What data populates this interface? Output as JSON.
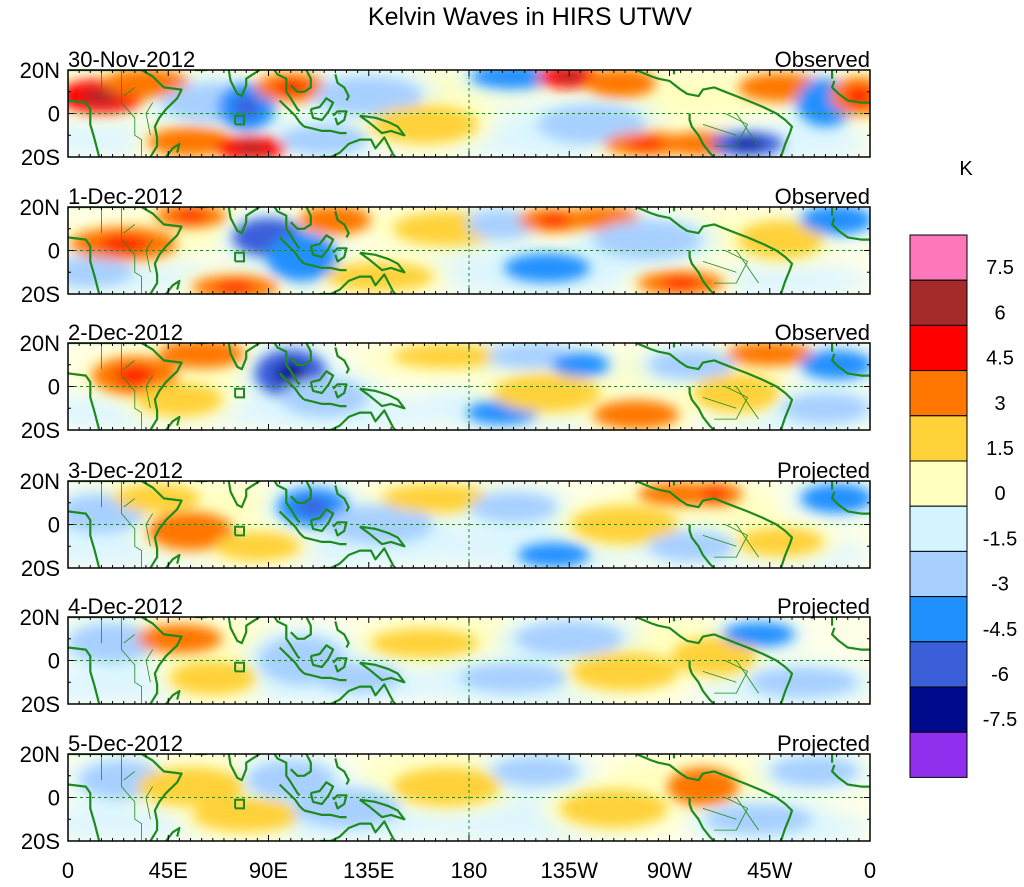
{
  "chart_data": {
    "type": "heatmap",
    "title": "Kelvin Waves in HIRS UTWV",
    "variable": "UTWV anomaly (Kelvin wave filtered)",
    "x_ticks": [
      "0",
      "45E",
      "90E",
      "135E",
      "180",
      "135W",
      "90W",
      "45W",
      "0"
    ],
    "x_range_deg": [
      0,
      360
    ],
    "y_ticks": [
      "20N",
      "0",
      "20S"
    ],
    "y_range_deg": [
      -20,
      20
    ],
    "colorbar": {
      "unit_label": "K",
      "levels": [
        "7.5",
        "6",
        "4.5",
        "3",
        "1.5",
        "0",
        "-1.5",
        "-3",
        "-4.5",
        "-6",
        "-7.5"
      ],
      "colors": [
        "#ff77bb",
        "#a52a2a",
        "#ff0000",
        "#ff7700",
        "#ffd23a",
        "#ffffc0",
        "#d4f4ff",
        "#a8d0ff",
        "#2090ff",
        "#3b5fd9",
        "#000a8c",
        "#9030ee"
      ]
    },
    "panels": [
      {
        "date": "30-Nov-2012",
        "kind": "Observed",
        "anomalies": [
          {
            "lon": 15,
            "lat": 8,
            "value": 5,
            "sx": 12,
            "sy": 7
          },
          {
            "lon": 35,
            "lat": 14,
            "value": 3,
            "sx": 12,
            "sy": 6
          },
          {
            "lon": 65,
            "lat": 5,
            "value": -2,
            "sx": 14,
            "sy": 8
          },
          {
            "lon": 80,
            "lat": 3,
            "value": -4,
            "sx": 8,
            "sy": 10
          },
          {
            "lon": 100,
            "lat": 12,
            "value": 4,
            "sx": 10,
            "sy": 6
          },
          {
            "lon": 55,
            "lat": -13,
            "value": 3,
            "sx": 12,
            "sy": 6
          },
          {
            "lon": 82,
            "lat": -16,
            "value": 5,
            "sx": 10,
            "sy": 5
          },
          {
            "lon": 115,
            "lat": -12,
            "value": -2.5,
            "sx": 12,
            "sy": 6
          },
          {
            "lon": 135,
            "lat": 8,
            "value": -2,
            "sx": 15,
            "sy": 8
          },
          {
            "lon": 160,
            "lat": -5,
            "value": 2,
            "sx": 15,
            "sy": 8
          },
          {
            "lon": 200,
            "lat": 17,
            "value": -3,
            "sx": 12,
            "sy": 5
          },
          {
            "lon": 225,
            "lat": 17,
            "value": 5,
            "sx": 9,
            "sy": 5
          },
          {
            "lon": 248,
            "lat": 14,
            "value": 3,
            "sx": 10,
            "sy": 6
          },
          {
            "lon": 235,
            "lat": -5,
            "value": -2,
            "sx": 15,
            "sy": 8
          },
          {
            "lon": 260,
            "lat": -14,
            "value": 4,
            "sx": 12,
            "sy": 5
          },
          {
            "lon": 285,
            "lat": -14,
            "value": 3,
            "sx": 12,
            "sy": 5
          },
          {
            "lon": 305,
            "lat": -14,
            "value": -5,
            "sx": 10,
            "sy": 5
          },
          {
            "lon": 320,
            "lat": 12,
            "value": 3,
            "sx": 12,
            "sy": 6
          },
          {
            "lon": 340,
            "lat": 5,
            "value": -3,
            "sx": 8,
            "sy": 10
          },
          {
            "lon": 355,
            "lat": 8,
            "value": 4,
            "sx": 8,
            "sy": 8
          }
        ]
      },
      {
        "date": "1-Dec-2012",
        "kind": "Observed",
        "anomalies": [
          {
            "lon": 25,
            "lat": 3,
            "value": 4,
            "sx": 15,
            "sy": 7
          },
          {
            "lon": 10,
            "lat": -10,
            "value": -2,
            "sx": 12,
            "sy": 6
          },
          {
            "lon": 55,
            "lat": 16,
            "value": 4,
            "sx": 10,
            "sy": 5
          },
          {
            "lon": 90,
            "lat": 6,
            "value": -4.5,
            "sx": 10,
            "sy": 8
          },
          {
            "lon": 105,
            "lat": -3,
            "value": -3,
            "sx": 10,
            "sy": 10
          },
          {
            "lon": 75,
            "lat": -17,
            "value": 4,
            "sx": 12,
            "sy": 5
          },
          {
            "lon": 120,
            "lat": 14,
            "value": 3,
            "sx": 10,
            "sy": 6
          },
          {
            "lon": 140,
            "lat": -12,
            "value": 2,
            "sx": 15,
            "sy": 6
          },
          {
            "lon": 170,
            "lat": 10,
            "value": 2,
            "sx": 15,
            "sy": 7
          },
          {
            "lon": 195,
            "lat": 12,
            "value": -2,
            "sx": 10,
            "sy": 6
          },
          {
            "lon": 218,
            "lat": 14,
            "value": 4,
            "sx": 10,
            "sy": 5
          },
          {
            "lon": 240,
            "lat": 15,
            "value": 3,
            "sx": 10,
            "sy": 5
          },
          {
            "lon": 215,
            "lat": -8,
            "value": -3,
            "sx": 12,
            "sy": 6
          },
          {
            "lon": 275,
            "lat": -15,
            "value": 4,
            "sx": 12,
            "sy": 5
          },
          {
            "lon": 260,
            "lat": 5,
            "value": -2,
            "sx": 15,
            "sy": 8
          },
          {
            "lon": 320,
            "lat": 5,
            "value": 2.5,
            "sx": 12,
            "sy": 8
          },
          {
            "lon": 345,
            "lat": 14,
            "value": -3,
            "sx": 10,
            "sy": 6
          }
        ]
      },
      {
        "date": "2-Dec-2012",
        "kind": "Observed",
        "anomalies": [
          {
            "lon": 30,
            "lat": 5,
            "value": 4,
            "sx": 12,
            "sy": 8
          },
          {
            "lon": 60,
            "lat": 15,
            "value": 3,
            "sx": 12,
            "sy": 6
          },
          {
            "lon": 50,
            "lat": -6,
            "value": 2,
            "sx": 12,
            "sy": 7
          },
          {
            "lon": 100,
            "lat": 6,
            "value": -5,
            "sx": 10,
            "sy": 10
          },
          {
            "lon": 115,
            "lat": -5,
            "value": -2.5,
            "sx": 12,
            "sy": 8
          },
          {
            "lon": 170,
            "lat": 14,
            "value": 2,
            "sx": 15,
            "sy": 5
          },
          {
            "lon": 208,
            "lat": 14,
            "value": -2.5,
            "sx": 12,
            "sy": 5
          },
          {
            "lon": 230,
            "lat": 10,
            "value": -3,
            "sx": 8,
            "sy": 5
          },
          {
            "lon": 195,
            "lat": -12,
            "value": -3.5,
            "sx": 10,
            "sy": 5
          },
          {
            "lon": 215,
            "lat": -3,
            "value": 2,
            "sx": 15,
            "sy": 8
          },
          {
            "lon": 255,
            "lat": -13,
            "value": 3,
            "sx": 12,
            "sy": 6
          },
          {
            "lon": 280,
            "lat": 10,
            "value": -2.5,
            "sx": 12,
            "sy": 6
          },
          {
            "lon": 300,
            "lat": -3,
            "value": 2,
            "sx": 12,
            "sy": 8
          },
          {
            "lon": 315,
            "lat": 15,
            "value": 3,
            "sx": 12,
            "sy": 5
          },
          {
            "lon": 345,
            "lat": 10,
            "value": -3,
            "sx": 10,
            "sy": 6
          },
          {
            "lon": 340,
            "lat": -10,
            "value": -1.5,
            "sx": 12,
            "sy": 6
          }
        ]
      },
      {
        "date": "3-Dec-2012",
        "kind": "Projected",
        "anomalies": [
          {
            "lon": 15,
            "lat": 5,
            "value": -2,
            "sx": 12,
            "sy": 8
          },
          {
            "lon": 40,
            "lat": 12,
            "value": 2.5,
            "sx": 12,
            "sy": 6
          },
          {
            "lon": 55,
            "lat": -3,
            "value": 3,
            "sx": 12,
            "sy": 8
          },
          {
            "lon": 85,
            "lat": -10,
            "value": 2,
            "sx": 12,
            "sy": 6
          },
          {
            "lon": 110,
            "lat": 8,
            "value": -4,
            "sx": 10,
            "sy": 8
          },
          {
            "lon": 140,
            "lat": 0,
            "value": -1.5,
            "sx": 15,
            "sy": 8
          },
          {
            "lon": 165,
            "lat": 12,
            "value": 2,
            "sx": 15,
            "sy": 6
          },
          {
            "lon": 200,
            "lat": 8,
            "value": -2,
            "sx": 12,
            "sy": 6
          },
          {
            "lon": 218,
            "lat": -14,
            "value": -3.5,
            "sx": 10,
            "sy": 5
          },
          {
            "lon": 250,
            "lat": 0,
            "value": 2,
            "sx": 15,
            "sy": 8
          },
          {
            "lon": 275,
            "lat": 14,
            "value": 3,
            "sx": 12,
            "sy": 5
          },
          {
            "lon": 290,
            "lat": 14,
            "value": 4,
            "sx": 8,
            "sy": 5
          },
          {
            "lon": 280,
            "lat": -10,
            "value": -2,
            "sx": 12,
            "sy": 6
          },
          {
            "lon": 320,
            "lat": -8,
            "value": 2,
            "sx": 12,
            "sy": 6
          },
          {
            "lon": 345,
            "lat": 12,
            "value": -3,
            "sx": 10,
            "sy": 6
          }
        ]
      },
      {
        "date": "4-Dec-2012",
        "kind": "Projected",
        "anomalies": [
          {
            "lon": 20,
            "lat": 8,
            "value": -2,
            "sx": 12,
            "sy": 8
          },
          {
            "lon": 50,
            "lat": 10,
            "value": 3,
            "sx": 12,
            "sy": 6
          },
          {
            "lon": 65,
            "lat": -8,
            "value": 2.5,
            "sx": 12,
            "sy": 7
          },
          {
            "lon": 105,
            "lat": 0,
            "value": -2,
            "sx": 12,
            "sy": 10
          },
          {
            "lon": 130,
            "lat": -8,
            "value": -1.5,
            "sx": 12,
            "sy": 6
          },
          {
            "lon": 160,
            "lat": 8,
            "value": 2,
            "sx": 15,
            "sy": 6
          },
          {
            "lon": 200,
            "lat": -8,
            "value": -2,
            "sx": 15,
            "sy": 6
          },
          {
            "lon": 225,
            "lat": 10,
            "value": -1.5,
            "sx": 15,
            "sy": 7
          },
          {
            "lon": 250,
            "lat": -5,
            "value": 1.5,
            "sx": 15,
            "sy": 8
          },
          {
            "lon": 290,
            "lat": 2,
            "value": 2.5,
            "sx": 12,
            "sy": 8
          },
          {
            "lon": 310,
            "lat": 12,
            "value": -3.5,
            "sx": 10,
            "sy": 5
          },
          {
            "lon": 330,
            "lat": -10,
            "value": -1.5,
            "sx": 15,
            "sy": 6
          }
        ]
      },
      {
        "date": "5-Dec-2012",
        "kind": "Projected",
        "anomalies": [
          {
            "lon": 25,
            "lat": 8,
            "value": -1.5,
            "sx": 12,
            "sy": 8
          },
          {
            "lon": 55,
            "lat": 5,
            "value": 2,
            "sx": 15,
            "sy": 8
          },
          {
            "lon": 80,
            "lat": -8,
            "value": 1.5,
            "sx": 15,
            "sy": 7
          },
          {
            "lon": 100,
            "lat": 8,
            "value": -2,
            "sx": 12,
            "sy": 8
          },
          {
            "lon": 125,
            "lat": -5,
            "value": -1.5,
            "sx": 15,
            "sy": 8
          },
          {
            "lon": 170,
            "lat": 5,
            "value": 1.5,
            "sx": 15,
            "sy": 8
          },
          {
            "lon": 210,
            "lat": 12,
            "value": -2,
            "sx": 12,
            "sy": 6
          },
          {
            "lon": 245,
            "lat": -5,
            "value": 1.5,
            "sx": 15,
            "sy": 8
          },
          {
            "lon": 285,
            "lat": 5,
            "value": 3,
            "sx": 10,
            "sy": 8
          },
          {
            "lon": 310,
            "lat": -10,
            "value": -1.5,
            "sx": 15,
            "sy": 6
          },
          {
            "lon": 335,
            "lat": 12,
            "value": -2,
            "sx": 12,
            "sy": 6
          }
        ]
      }
    ]
  }
}
